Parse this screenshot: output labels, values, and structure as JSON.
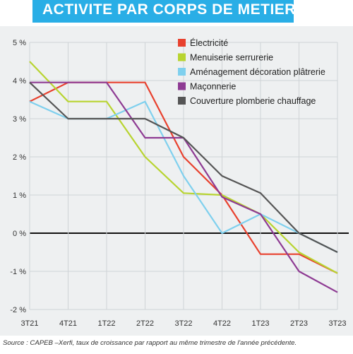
{
  "header": {
    "title": "ACTIVITE PAR CORPS DE METIERS"
  },
  "source": "Source : CAPEB –Xerfi, taux de croissance par rapport au même trimestre de l'année précédente.",
  "chart_data": {
    "type": "line",
    "categories": [
      "3T21",
      "4T21",
      "1T22",
      "2T22",
      "3T22",
      "4T22",
      "1T23",
      "2T23",
      "3T23"
    ],
    "ylim": [
      -2,
      5
    ],
    "yticks": [
      -2,
      -1,
      0,
      1,
      2,
      3,
      4,
      5
    ],
    "ytick_labels": [
      "-2 %",
      "-1 %",
      "0 %",
      "1 %",
      "2 %",
      "3 %",
      "4 %",
      "5 %"
    ],
    "grid": true,
    "legend_position": "top-right",
    "series": [
      {
        "name": "Électricité",
        "color": "#e8412e",
        "values": [
          3.45,
          3.95,
          3.95,
          3.95,
          2.0,
          1.0,
          -0.55,
          -0.55,
          -1.05
        ]
      },
      {
        "name": "Menuiserie serrurerie",
        "color": "#b8d430",
        "values": [
          4.5,
          3.45,
          3.45,
          2.0,
          1.05,
          1.0,
          0.5,
          -0.5,
          -1.05
        ]
      },
      {
        "name": "Aménagement décoration plâtrerie",
        "color": "#7fd0ee",
        "values": [
          3.45,
          3.0,
          3.0,
          3.45,
          1.5,
          0.0,
          0.5,
          0.0,
          -0.5
        ]
      },
      {
        "name": "Maçonnerie",
        "color": "#8e3b93",
        "values": [
          3.95,
          3.95,
          3.95,
          2.5,
          2.5,
          0.95,
          0.5,
          -1.0,
          -1.55
        ]
      },
      {
        "name": "Couverture plomberie chauffage",
        "color": "#555555",
        "values": [
          3.95,
          3.0,
          3.0,
          3.0,
          2.5,
          1.5,
          1.05,
          0.0,
          -0.5
        ]
      }
    ]
  }
}
